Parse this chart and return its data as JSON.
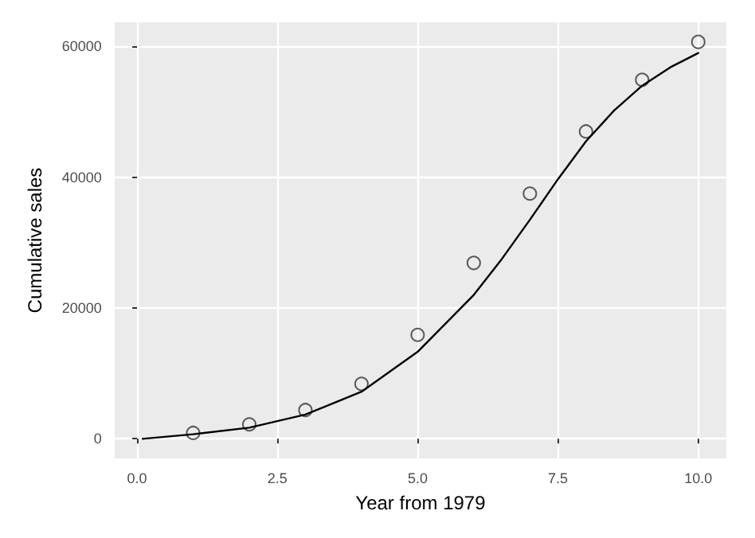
{
  "chart_data": {
    "type": "scatter",
    "xlabel": "Year from 1979",
    "ylabel": "Cumulative sales",
    "xlim": [
      -0.4,
      10.5
    ],
    "xticks": [
      {
        "value": 0,
        "label": "0.0"
      },
      {
        "value": 2.5,
        "label": "2.5"
      },
      {
        "value": 5,
        "label": "5.0"
      },
      {
        "value": 7.5,
        "label": "7.5"
      },
      {
        "value": 10,
        "label": "10.0"
      }
    ],
    "ylim": [
      -3000,
      63700
    ],
    "yticks": [
      0,
      20000,
      40000,
      60000
    ],
    "grid": true,
    "marker": "circle",
    "series": [
      {
        "color": "#333333",
        "x": [
          1,
          2,
          3,
          4,
          5,
          6,
          7,
          8,
          9,
          10
        ],
        "values": [
          900,
          2200,
          4400,
          8400,
          15900,
          26900,
          37500,
          47000,
          54900,
          60700
        ]
      },
      {
        "type": "line",
        "color": "#000000",
        "marker": "none",
        "x": [
          0.1,
          1,
          2,
          3,
          4,
          5,
          6,
          6.5,
          7,
          7.5,
          8,
          8.5,
          9,
          9.5,
          10
        ],
        "values": [
          0,
          700,
          1700,
          3700,
          7200,
          13300,
          22000,
          27500,
          33500,
          39700,
          45500,
          50200,
          54000,
          56800,
          59000
        ]
      }
    ]
  }
}
